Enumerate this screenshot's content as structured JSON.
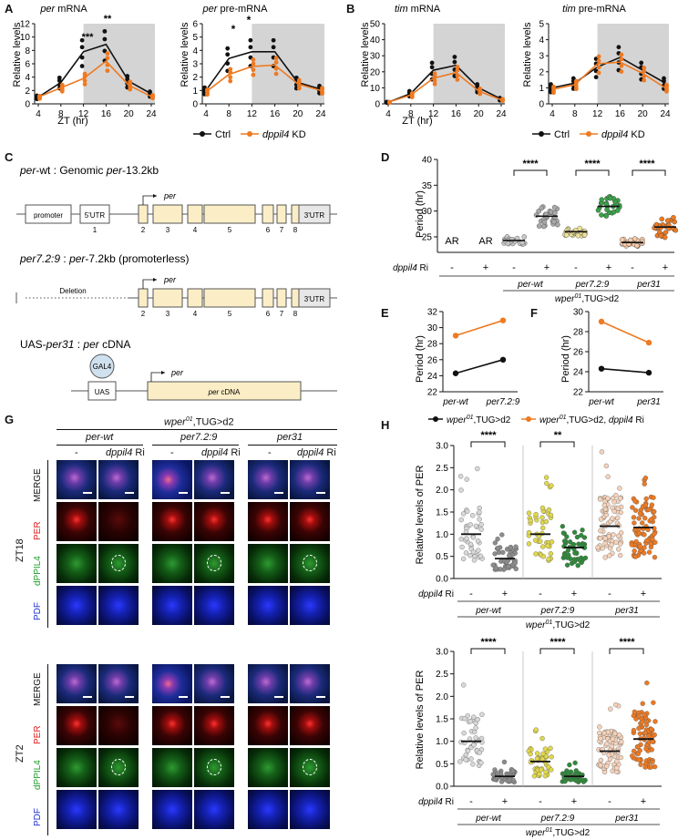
{
  "panels": {
    "A": "A",
    "B": "B",
    "C": "C",
    "D": "D",
    "E": "E",
    "F": "F",
    "G": "G",
    "H": "H"
  },
  "colors": {
    "ctrl": "#111111",
    "kd": "#ee7a22",
    "night": "#d4d4d4"
  },
  "common": {
    "ylabel_rel": "Relative levels",
    "xlabel_zt": "ZT (hr)",
    "x_ticks": [
      "4",
      "8",
      "12",
      "16",
      "20",
      "24"
    ],
    "legend_ctrl": "Ctrl",
    "legend_kd": "dppil4",
    "legend_kd_suffix": " KD"
  },
  "panel_a": {
    "left_title_i": "per",
    "left_title": " mRNA",
    "left_y_ticks": [
      "0",
      "2",
      "4",
      "6",
      "8",
      "10",
      "12"
    ],
    "left_sig": [
      "***",
      "**"
    ],
    "right_title_i": "per",
    "right_title": " pre-mRNA",
    "right_y_ticks": [
      "0",
      "1",
      "2",
      "3",
      "4",
      "5",
      "6"
    ],
    "right_sig": [
      "*",
      "*"
    ]
  },
  "panel_b": {
    "left_title_i": "tim",
    "left_title": " mRNA",
    "left_y_ticks": [
      "0",
      "10",
      "20",
      "30",
      "40",
      "50"
    ],
    "right_title_i": "tim",
    "right_title": " pre-mRNA",
    "right_y_ticks": [
      "0",
      "1",
      "2",
      "3",
      "4",
      "5"
    ]
  },
  "panel_c": {
    "c1_i1": "per",
    "c1_mid": "-wt : Genomic ",
    "c1_i2": "per",
    "c1_end": "-13.2kb",
    "promoter": "promoter",
    "utr5": "5'UTR",
    "utr3": "3'UTR",
    "per_arrow": "per",
    "c2_i": "per7.2:9",
    "c2_mid": " : ",
    "c2_i2": "per",
    "c2_end": "-7.2kb (promoterless)",
    "deletion": "Deletion",
    "c3_a": "UAS-",
    "c3_i": "per31",
    "c3_mid": " : ",
    "c3_i2": "per",
    "c3_end": " cDNA",
    "gal4": "GAL4",
    "uas": "UAS",
    "cdna_i": "per",
    "cdna": " cDNA",
    "exons1": [
      "1",
      "2",
      "3",
      "4",
      "5",
      "6",
      "7",
      "8"
    ],
    "exons2": [
      "2",
      "3",
      "4",
      "5",
      "6",
      "7",
      "8"
    ]
  },
  "panel_d": {
    "ylabel": "Period (hr)",
    "y_ticks": [
      "25",
      "30",
      "35",
      "40"
    ],
    "ar": [
      "AR",
      "AR"
    ],
    "sig": [
      "****",
      "****",
      "****"
    ],
    "ri_label": "dppil4",
    "ri_suffix": " Ri",
    "signs": [
      "-",
      "+",
      "-",
      "+",
      "-",
      "+",
      "-",
      "+"
    ],
    "groups": [
      "per-wt",
      "per7.2:9",
      "per31"
    ],
    "genotype_a": "wper",
    "genotype_sup": "01",
    "genotype_b": ",TUG>d2"
  },
  "panel_e": {
    "ylabel": "Period (hr)",
    "y_ticks": [
      "22",
      "24",
      "26",
      "28",
      "30",
      "32"
    ],
    "x_ticks": [
      "per-wt",
      "per7.2:9"
    ]
  },
  "panel_f": {
    "ylabel": "Period (hr)",
    "y_ticks": [
      "22",
      "24",
      "26",
      "28",
      "30"
    ],
    "x_ticks": [
      "per-wt",
      "per31"
    ]
  },
  "legend_ef": {
    "a": "wper",
    "sup": "01",
    "b": ",TUG>d2",
    "c": "wper",
    "sup2": "01",
    "d": ",TUG>d2, ",
    "e": "dppil4",
    "f": " Ri"
  },
  "panel_g": {
    "geno_a": "wper",
    "geno_sup": "01",
    "geno_b": ",TUG>d2",
    "groups": [
      "per-wt",
      "per7.2:9",
      "per31"
    ],
    "minus": "-",
    "ri": "dppil4",
    "ri_suffix": " Ri",
    "rows": [
      "MERGE",
      "PER",
      "dPPIL4",
      "PDF"
    ],
    "zt18": "ZT18",
    "zt2": "ZT2"
  },
  "panel_h": {
    "ylabel": "Relative levels of PER",
    "y_ticks": [
      "0.0",
      "0.5",
      "1.0",
      "1.5",
      "2.0",
      "2.5",
      "3.0"
    ],
    "top_sig": [
      "****",
      "**"
    ],
    "bottom_sig": [
      "****",
      "****",
      "****"
    ],
    "ri": "dppil4",
    "ri_suffix": " Ri",
    "signs": [
      "-",
      "+",
      "-",
      "+",
      "-",
      "+"
    ],
    "groups": [
      "per-wt",
      "per7.2:9",
      "per31"
    ],
    "geno_a": "wper",
    "geno_sup": "01",
    "geno_b": ",TUG>d2"
  },
  "chart_data": [
    {
      "type": "line",
      "panel": "A-left",
      "title": "per mRNA",
      "xlabel": "ZT (hr)",
      "ylabel": "Relative levels",
      "x": [
        4,
        8,
        12,
        16,
        20,
        24
      ],
      "ylim": [
        0,
        12
      ],
      "series": [
        {
          "name": "Ctrl",
          "values": [
            1.0,
            3.2,
            7.8,
            8.9,
            3.4,
            1.5
          ]
        },
        {
          "name": "dppil4 KD",
          "values": [
            1.0,
            2.4,
            3.8,
            6.4,
            2.8,
            1.1
          ]
        }
      ]
    },
    {
      "type": "line",
      "panel": "A-right",
      "title": "per pre-mRNA",
      "xlabel": "ZT (hr)",
      "ylabel": "Relative levels",
      "x": [
        4,
        8,
        12,
        16,
        20,
        24
      ],
      "ylim": [
        0,
        6
      ],
      "series": [
        {
          "name": "Ctrl",
          "values": [
            1.0,
            3.4,
            3.9,
            3.9,
            1.6,
            1.1
          ]
        },
        {
          "name": "dppil4 KD",
          "values": [
            0.9,
            2.2,
            2.8,
            2.9,
            1.5,
            1.0
          ]
        }
      ]
    },
    {
      "type": "line",
      "panel": "B-left",
      "title": "tim mRNA",
      "xlabel": "ZT (hr)",
      "ylabel": "Relative levels",
      "x": [
        4,
        8,
        12,
        16,
        20,
        24
      ],
      "ylim": [
        0,
        50
      ],
      "series": [
        {
          "name": "Ctrl",
          "values": [
            1.0,
            6.5,
            21.0,
            24.0,
            10.0,
            3.0
          ]
        },
        {
          "name": "dppil4 KD",
          "values": [
            1.0,
            5.5,
            16.0,
            19.5,
            8.0,
            2.5
          ]
        }
      ]
    },
    {
      "type": "line",
      "panel": "B-right",
      "title": "tim pre-mRNA",
      "xlabel": "ZT (hr)",
      "ylabel": "Relative levels",
      "x": [
        4,
        8,
        12,
        16,
        20,
        24
      ],
      "ylim": [
        0,
        5
      ],
      "series": [
        {
          "name": "Ctrl",
          "values": [
            1.0,
            1.3,
            2.3,
            2.9,
            2.1,
            1.3
          ]
        },
        {
          "name": "dppil4 KD",
          "values": [
            0.9,
            1.2,
            2.5,
            2.6,
            1.9,
            1.0
          ]
        }
      ]
    },
    {
      "type": "scatter",
      "panel": "D",
      "ylabel": "Period (hr)",
      "ylim": [
        22,
        40
      ],
      "categories": [
        "per-wt -",
        "per-wt +",
        "per7.2:9 -",
        "per7.2:9 +",
        "per31 -",
        "per31 +"
      ],
      "values": [
        24.3,
        29.0,
        26.0,
        30.9,
        23.9,
        26.9
      ]
    },
    {
      "type": "line",
      "panel": "E",
      "ylabel": "Period (hr)",
      "ylim": [
        22,
        32
      ],
      "categories": [
        "per-wt",
        "per7.2:9"
      ],
      "series": [
        {
          "name": "wper01,TUG>d2",
          "values": [
            24.3,
            26.0
          ]
        },
        {
          "name": "wper01,TUG>d2, dppil4 Ri",
          "values": [
            29.0,
            30.9
          ]
        }
      ]
    },
    {
      "type": "line",
      "panel": "F",
      "ylabel": "Period (hr)",
      "ylim": [
        22,
        30
      ],
      "categories": [
        "per-wt",
        "per31"
      ],
      "series": [
        {
          "name": "wper01,TUG>d2",
          "values": [
            24.3,
            23.9
          ]
        },
        {
          "name": "wper01,TUG>d2, dppil4 Ri",
          "values": [
            29.0,
            26.9
          ]
        }
      ]
    },
    {
      "type": "scatter",
      "panel": "H-top",
      "ylabel": "Relative levels of PER",
      "ylim": [
        0,
        3
      ],
      "categories": [
        "per-wt -",
        "per-wt +",
        "per7.2:9 -",
        "per7.2:9 +",
        "per31 -",
        "per31 +"
      ],
      "values": [
        1.0,
        0.45,
        1.0,
        0.7,
        1.18,
        1.15
      ]
    },
    {
      "type": "scatter",
      "panel": "H-bottom",
      "ylabel": "Relative levels of PER",
      "ylim": [
        0,
        3
      ],
      "categories": [
        "per-wt -",
        "per-wt +",
        "per7.2:9 -",
        "per7.2:9 +",
        "per31 -",
        "per31 +"
      ],
      "values": [
        1.0,
        0.22,
        0.55,
        0.22,
        0.78,
        1.05
      ]
    }
  ]
}
